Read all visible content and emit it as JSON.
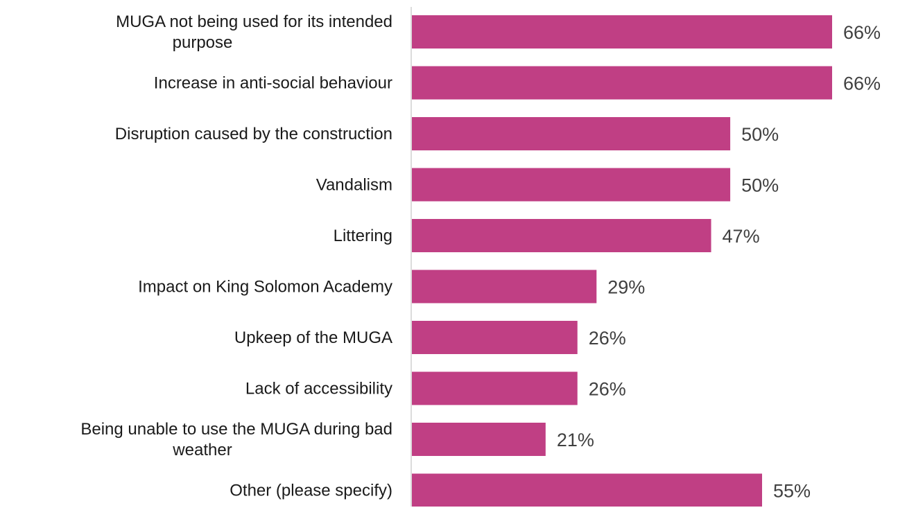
{
  "chart_data": {
    "type": "bar",
    "orientation": "horizontal",
    "categories": [
      "MUGA not being used for its intended purpose",
      "Increase in anti-social behaviour",
      "Disruption caused by the construction",
      "Vandalism",
      "Littering",
      "Impact on King Solomon Academy",
      "Upkeep of the MUGA",
      "Lack of accessibility",
      "Being unable to use the MUGA during bad weather",
      "Other (please specify)"
    ],
    "category_lines": [
      [
        "MUGA not being used for its intended",
        "purpose"
      ],
      [
        "Increase in anti-social behaviour"
      ],
      [
        "Disruption caused by the construction"
      ],
      [
        "Vandalism"
      ],
      [
        "Littering"
      ],
      [
        "Impact on King Solomon Academy"
      ],
      [
        "Upkeep of the MUGA"
      ],
      [
        "Lack of accessibility"
      ],
      [
        "Being unable to use the MUGA during bad",
        "weather"
      ],
      [
        "Other (please specify)"
      ]
    ],
    "values": [
      66,
      66,
      50,
      50,
      47,
      29,
      26,
      26,
      21,
      55
    ],
    "value_labels": [
      "66%",
      "66%",
      "50%",
      "50%",
      "47%",
      "29%",
      "26%",
      "26%",
      "21%",
      "55%"
    ],
    "unit": "%",
    "xlim": [
      0,
      66
    ],
    "bar_color": "#c03f84",
    "axis_color": "#d0d0d0",
    "grid": false,
    "legend": "none"
  }
}
